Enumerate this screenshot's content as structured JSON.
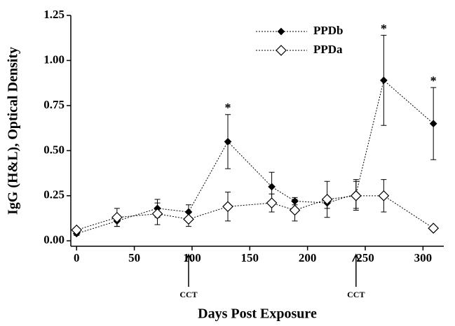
{
  "chart_data": {
    "type": "line",
    "x_label": "Days Post Exposure",
    "y_label": "IgG (H&L), Optical Density",
    "xlim": [
      -5,
      318
    ],
    "xticks": [
      0,
      50,
      100,
      150,
      200,
      250,
      300
    ],
    "ylim": [
      -0.03,
      1.25
    ],
    "yticks": [
      {
        "value": 0,
        "label": "0.00"
      },
      {
        "value": 0.25,
        "label": "0.25"
      },
      {
        "value": 0.5,
        "label": "0.50"
      },
      {
        "value": 0.75,
        "label": "0.75"
      },
      {
        "value": 1.0,
        "label": "1.00"
      },
      {
        "value": 1.25,
        "label": "1.25"
      }
    ],
    "legend": "top",
    "x": [
      0,
      35,
      70,
      97,
      131,
      169,
      189,
      217,
      242,
      266,
      309
    ],
    "series": [
      {
        "name": "PPDb",
        "color": "#000000",
        "marker": "filled-diamond",
        "values": [
          0.04,
          0.11,
          0.18,
          0.16,
          0.55,
          0.3,
          0.22,
          0.21,
          0.26,
          0.89,
          0.65
        ],
        "errors": [
          0.01,
          0.03,
          0.05,
          0.04,
          0.15,
          0.08,
          0.02,
          0.03,
          0.08,
          0.25,
          0.2
        ]
      },
      {
        "name": "PPDa",
        "color": "#000000",
        "marker": "open-diamond",
        "values": [
          0.06,
          0.13,
          0.15,
          0.12,
          0.19,
          0.21,
          0.17,
          0.23,
          0.25,
          0.25,
          0.07
        ],
        "errors": [
          0.01,
          0.05,
          0.06,
          0.04,
          0.08,
          0.05,
          0.06,
          0.1,
          0.08,
          0.09,
          0.01
        ]
      }
    ],
    "annotations": [
      {
        "text": "*",
        "x": 131,
        "y": 0.73
      },
      {
        "text": "*",
        "x": 266,
        "y": 1.17
      },
      {
        "text": "*",
        "x": 309,
        "y": 0.88
      }
    ],
    "markers": [
      {
        "label": "CCT",
        "x": 97
      },
      {
        "label": "CCT",
        "x": 242
      }
    ]
  }
}
